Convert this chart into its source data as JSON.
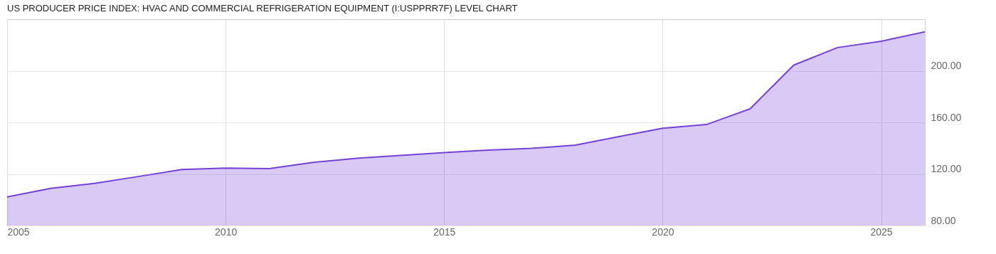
{
  "chart_data": {
    "type": "area",
    "title": "US PRODUCER PRICE INDEX: HVAC AND COMMERCIAL REFRIGERATION EQUIPMENT (I:USPPRR7F) LEVEL CHART",
    "x": [
      2005,
      2006,
      2007,
      2008,
      2009,
      2010,
      2011,
      2012,
      2013,
      2014,
      2015,
      2016,
      2017,
      2018,
      2019,
      2020,
      2021,
      2022,
      2023,
      2024,
      2025,
      2026
    ],
    "series": [
      {
        "color": "#7442d8",
        "values": [
          102.2,
          108.8,
          112.7,
          118.0,
          123.4,
          124.6,
          124.1,
          129.0,
          132.2,
          134.4,
          136.6,
          138.5,
          139.8,
          142.4,
          149.0,
          155.4,
          158.3,
          170.5,
          204.4,
          218.0,
          222.9,
          230.2
        ]
      }
    ],
    "xlim": [
      2005,
      2026
    ],
    "xticks": [
      2005,
      2010,
      2015,
      2020,
      2025
    ],
    "ylim": [
      80,
      240
    ],
    "yticks": [
      {
        "value": 80,
        "label": "80.00"
      },
      {
        "value": 120,
        "label": "120.00"
      },
      {
        "value": 160,
        "label": "160.00"
      },
      {
        "value": 200,
        "label": "200.00"
      }
    ],
    "grid": true
  }
}
